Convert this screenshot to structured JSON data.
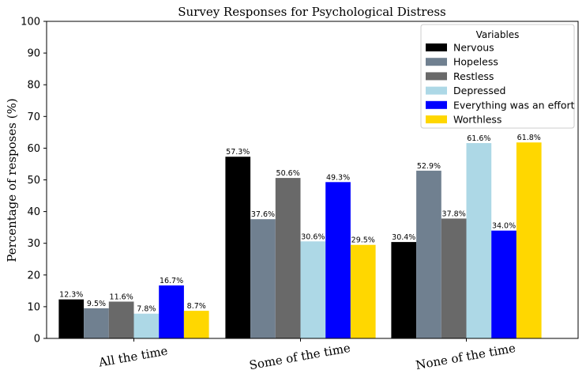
{
  "chart_data": {
    "type": "bar",
    "title": "Survey Responses for Psychological Distress",
    "xlabel": "",
    "ylabel": "Percentage of resposes (%)",
    "ylim": [
      0,
      100
    ],
    "yticks": [
      0,
      10,
      20,
      30,
      40,
      50,
      60,
      70,
      80,
      90,
      100
    ],
    "grid": false,
    "legend_title": "Variables",
    "legend_position": "top-right",
    "categories": [
      "All the time",
      "Some of the time",
      "None of the time"
    ],
    "series": [
      {
        "name": "Nervous",
        "color": "#000000",
        "values": [
          12.3,
          57.3,
          30.4
        ],
        "labels": [
          "12.3%",
          "57.3%",
          "30.4%"
        ]
      },
      {
        "name": "Hopeless",
        "color": "#708090",
        "values": [
          9.5,
          37.6,
          52.9
        ],
        "labels": [
          "9.5%",
          "37.6%",
          "52.9%"
        ]
      },
      {
        "name": "Restless",
        "color": "#696969",
        "values": [
          11.6,
          50.6,
          37.8
        ],
        "labels": [
          "11.6%",
          "50.6%",
          "37.8%"
        ]
      },
      {
        "name": "Depressed",
        "color": "#add8e6",
        "values": [
          7.8,
          30.6,
          61.6
        ],
        "labels": [
          "7.8%",
          "30.6%",
          "61.6%"
        ]
      },
      {
        "name": "Everything was an effort",
        "color": "#0000ff",
        "values": [
          16.7,
          49.3,
          34.0
        ],
        "labels": [
          "16.7%",
          "49.3%",
          "34.0%"
        ]
      },
      {
        "name": "Worthless",
        "color": "#ffd700",
        "values": [
          8.7,
          29.5,
          61.8
        ],
        "labels": [
          "8.7%",
          "29.5%",
          "61.8%"
        ]
      }
    ]
  }
}
